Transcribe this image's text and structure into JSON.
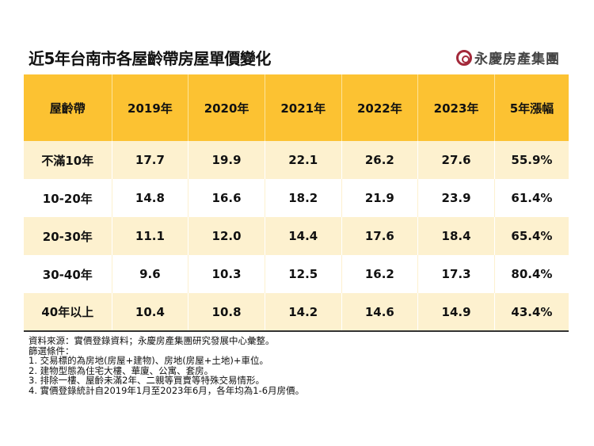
{
  "title": "近5年台南市各屋齡帶房屋單價變化",
  "logo": {
    "text": "永慶房產集團",
    "color": "#a3293a"
  },
  "colors": {
    "header": "#fcc232",
    "stripe": "#fdf1cf"
  },
  "table": {
    "headers": [
      "屋齡帶",
      "2019年",
      "2020年",
      "2021年",
      "2022年",
      "2023年",
      "5年漲幅"
    ],
    "rows": [
      [
        "不滿10年",
        "17.7",
        "19.9",
        "22.1",
        "26.2",
        "27.6",
        "55.9%"
      ],
      [
        "10-20年",
        "14.8",
        "16.6",
        "18.2",
        "21.9",
        "23.9",
        "61.4%"
      ],
      [
        "20-30年",
        "11.1",
        "12.0",
        "14.4",
        "17.6",
        "18.4",
        "65.4%"
      ],
      [
        "30-40年",
        "9.6",
        "10.3",
        "12.5",
        "16.2",
        "17.3",
        "80.4%"
      ],
      [
        "40年以上",
        "10.4",
        "10.8",
        "14.2",
        "14.6",
        "14.9",
        "43.4%"
      ]
    ]
  },
  "notes": [
    "資料來源：實價登錄資料；永慶房產集團研究發展中心彙整。",
    "篩選條件：",
    "1. 交易標的為房地(房屋+建物)、房地(房屋+土地)+車位。",
    "2. 建物型態為住宅大樓、華廈、公寓、套房。",
    "3. 排除一樓、屋齡未滿2年、二親等買賣等特殊交易情形。",
    "4. 實價登錄統計自2019年1月至2023年6月，各年均為1-6月房價。"
  ]
}
